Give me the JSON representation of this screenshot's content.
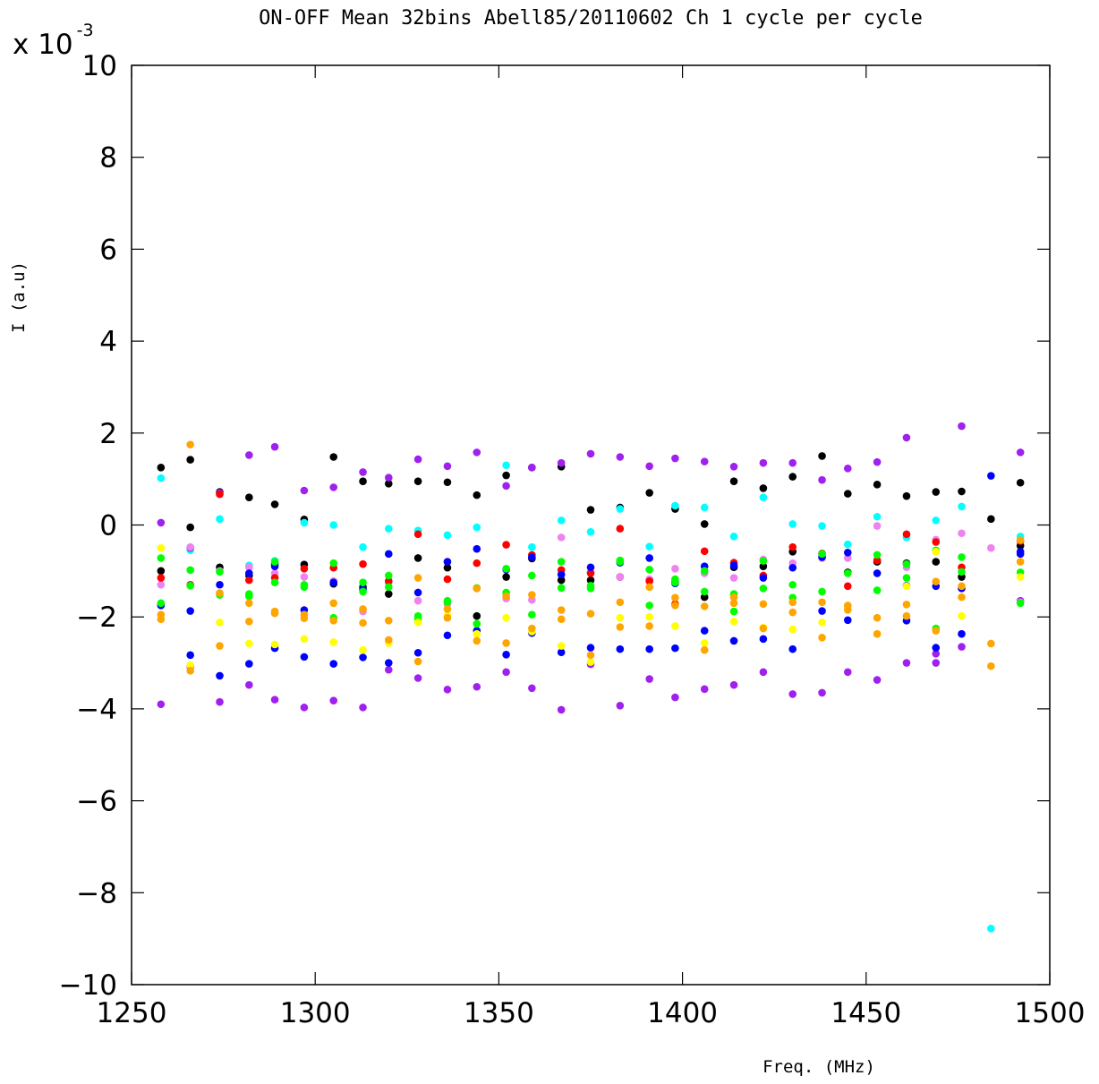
{
  "chart_data": {
    "type": "scatter",
    "title": "ON-OFF Mean 32bins Abell85/20110602 Ch 1 cycle per cycle",
    "xlabel": "Freq. (MHz)",
    "ylabel": "I (a.u)",
    "y_multiplier_base": "x 10",
    "y_multiplier_exp": "-3",
    "xlim": [
      1250,
      1500
    ],
    "ylim": [
      -10,
      10
    ],
    "xticks": [
      1250,
      1300,
      1350,
      1400,
      1450,
      1500
    ],
    "yticks": [
      -10,
      -8,
      -6,
      -4,
      -2,
      0,
      2,
      4,
      6,
      8,
      10
    ],
    "ytick_labels": [
      "−10",
      "−8",
      "−6",
      "−4",
      "−2",
      "0",
      "2",
      "4",
      "6",
      "8",
      "10"
    ],
    "xtick_labels": [
      "1250",
      "1300",
      "1350",
      "1400",
      "1450",
      "1500"
    ],
    "grid": false,
    "x": [
      1258,
      1266,
      1274,
      1282,
      1289,
      1297,
      1305,
      1313,
      1320,
      1328,
      1336,
      1344,
      1352,
      1359,
      1367,
      1375,
      1383,
      1391,
      1398,
      1406,
      1414,
      1422,
      1430,
      1438,
      1445,
      1453,
      1461,
      1469,
      1476,
      1484,
      1492
    ],
    "series": [
      {
        "color": "#000000",
        "values": [
          1.25,
          1.42,
          0.72,
          0.6,
          0.45,
          0.12,
          1.48,
          0.95,
          0.9,
          0.95,
          0.93,
          0.65,
          1.08,
          1.25,
          1.27,
          0.33,
          0.38,
          0.7,
          0.35,
          0.02,
          0.95,
          0.8,
          1.05,
          1.5,
          0.68,
          0.88,
          0.63,
          0.72,
          0.73,
          0.13,
          0.92
        ]
      },
      {
        "color": "#000000",
        "values": [
          -1.0,
          -0.05,
          -0.92,
          -1.1,
          -0.85,
          -0.86,
          -1.28,
          -1.35,
          -1.5,
          -0.72,
          -0.93,
          -1.98,
          -1.13,
          -0.73,
          -1.2,
          -1.2,
          -1.13,
          -1.2,
          -1.23,
          -1.57,
          -0.92,
          -0.9,
          -0.58,
          -0.63,
          -1.03,
          -0.8,
          -0.83,
          -0.8,
          -1.13,
          null,
          -0.45
        ]
      },
      {
        "color": "#00ffff",
        "values": [
          1.02,
          -0.55,
          0.13,
          -0.88,
          -0.78,
          0.05,
          0.0,
          -0.48,
          -0.08,
          -0.12,
          -0.22,
          -0.05,
          1.3,
          -0.48,
          0.1,
          -0.15,
          0.35,
          -0.47,
          0.42,
          0.38,
          -0.25,
          0.6,
          0.02,
          -0.02,
          -0.42,
          0.18,
          -0.27,
          0.1,
          0.4,
          -8.78,
          -0.25
        ]
      },
      {
        "color": "#a020f0",
        "values": [
          0.05,
          -3.08,
          -3.85,
          -3.48,
          -3.8,
          -3.97,
          -3.82,
          -3.97,
          -3.15,
          -3.33,
          -3.58,
          -3.52,
          -3.2,
          -3.55,
          -4.02,
          -3.03,
          -3.93,
          -3.35,
          -3.75,
          -3.57,
          -3.48,
          -3.2,
          -3.68,
          -3.65,
          -3.2,
          -3.37,
          -3.0,
          -3.0,
          -2.65,
          null,
          -1.65
        ]
      },
      {
        "color": "#a020f0",
        "values": [
          -3.9,
          -0.5,
          0.7,
          1.52,
          1.7,
          0.75,
          0.82,
          1.15,
          1.03,
          1.43,
          1.28,
          1.58,
          0.85,
          1.25,
          1.35,
          1.55,
          1.48,
          1.28,
          1.45,
          1.38,
          1.27,
          1.35,
          1.35,
          0.98,
          1.23,
          1.37,
          1.9,
          -2.8,
          2.15,
          null,
          1.58
        ]
      },
      {
        "color": "#ee82ee",
        "values": [
          -1.3,
          -0.48,
          -1.0,
          -0.92,
          -1.05,
          -1.13,
          -1.22,
          -1.88,
          -1.25,
          -1.65,
          -1.72,
          -1.38,
          -1.6,
          -1.63,
          -0.27,
          -1.03,
          -1.13,
          -1.18,
          -0.95,
          -1.05,
          -1.15,
          -0.75,
          -0.83,
          -0.72,
          -0.72,
          -0.02,
          -0.92,
          -0.32,
          -0.18,
          -0.5,
          -1.68
        ]
      },
      {
        "color": "#ff0000",
        "values": [
          -1.15,
          -1.3,
          0.67,
          -1.2,
          -1.15,
          -0.95,
          -0.93,
          -0.85,
          -1.22,
          -0.2,
          -1.18,
          -0.83,
          -0.43,
          -0.65,
          -0.98,
          -1.05,
          -0.08,
          -1.22,
          -1.72,
          -0.57,
          -0.82,
          -1.1,
          -0.48,
          -0.62,
          -1.33,
          -0.77,
          -0.2,
          -0.37,
          -0.92,
          null,
          -0.35
        ]
      },
      {
        "color": "#0000ff",
        "values": [
          -1.75,
          -1.87,
          -1.3,
          -1.05,
          -2.68,
          -1.85,
          -3.02,
          -2.88,
          -0.63,
          -1.47,
          -2.4,
          -0.52,
          -2.82,
          -2.35,
          -2.77,
          -2.67,
          -2.7,
          -2.7,
          -2.68,
          -2.3,
          -2.52,
          -2.48,
          -2.7,
          -0.7,
          -2.07,
          -1.05,
          -2.08,
          -2.67,
          -2.37,
          1.07,
          -0.58
        ]
      },
      {
        "color": "#0000ff",
        "values": [
          null,
          -2.83,
          -3.28,
          -3.02,
          -0.9,
          -2.87,
          -1.25,
          -1.4,
          -3.0,
          -2.78,
          -0.8,
          -2.3,
          -0.97,
          -0.7,
          -1.08,
          -0.92,
          -0.82,
          -0.72,
          -1.27,
          -0.9,
          -0.88,
          -1.15,
          -0.93,
          -1.87,
          -0.6,
          null,
          -1.32,
          -1.33,
          -1.38,
          null,
          -0.63
        ]
      },
      {
        "color": "#00ff00",
        "values": [
          -0.72,
          -0.98,
          -1.52,
          -1.5,
          -1.25,
          -1.35,
          -0.83,
          -1.25,
          -1.1,
          -1.98,
          -1.65,
          -2.15,
          -0.95,
          -1.95,
          -1.37,
          -1.38,
          -0.77,
          -1.75,
          -1.18,
          -1.45,
          -1.5,
          -1.38,
          -1.3,
          -1.45,
          -1.05,
          -1.42,
          -1.15,
          -2.25,
          -0.7,
          null,
          -1.03
        ]
      },
      {
        "color": "#00ff00",
        "values": [
          -1.7,
          -1.32,
          -1.02,
          -1.55,
          -0.8,
          -1.3,
          -2.02,
          -1.45,
          -1.35,
          -2.05,
          -1.68,
          -1.37,
          -1.47,
          -1.1,
          -0.8,
          -1.32,
          -0.8,
          -0.97,
          -1.25,
          -1.0,
          -1.88,
          -0.78,
          -1.58,
          -0.63,
          -1.8,
          -0.65,
          -0.85,
          -0.55,
          -1.02,
          null,
          -1.7
        ]
      },
      {
        "color": "#ffff00",
        "values": [
          -0.5,
          -3.05,
          -2.12,
          -2.58,
          -2.6,
          -2.48,
          -2.55,
          -2.72,
          -2.57,
          -2.12,
          -1.97,
          -2.37,
          -2.02,
          -2.32,
          -2.63,
          -2.98,
          -2.02,
          -2.0,
          -2.2,
          -2.57,
          -2.1,
          -2.23,
          -2.27,
          -2.12,
          -1.8,
          -2.37,
          -1.33,
          -0.58,
          -1.98,
          null,
          -1.13
        ]
      },
      {
        "color": "#ffa500",
        "values": [
          -1.95,
          1.75,
          -1.48,
          -1.7,
          -1.88,
          -2.03,
          -1.7,
          -1.83,
          -2.08,
          -1.15,
          -2.02,
          -2.52,
          -2.57,
          -2.25,
          -1.85,
          -2.83,
          -1.68,
          -1.35,
          -1.58,
          -2.72,
          -1.7,
          -1.72,
          -1.68,
          -1.68,
          -1.75,
          -2.02,
          -1.73,
          -1.23,
          -1.33,
          -3.07,
          -0.8
        ]
      },
      {
        "color": "#ffa500",
        "values": [
          -2.05,
          -3.17,
          -2.63,
          -2.1,
          -1.92,
          -1.95,
          -2.08,
          -2.13,
          -2.5,
          -2.97,
          -1.83,
          -1.38,
          -1.55,
          -1.52,
          -2.05,
          -1.93,
          -2.22,
          -2.2,
          -1.75,
          -1.77,
          -1.57,
          -2.25,
          -1.9,
          -2.45,
          -1.85,
          -2.37,
          -1.98,
          -2.3,
          -1.57,
          -2.58,
          -0.33
        ]
      }
    ]
  }
}
